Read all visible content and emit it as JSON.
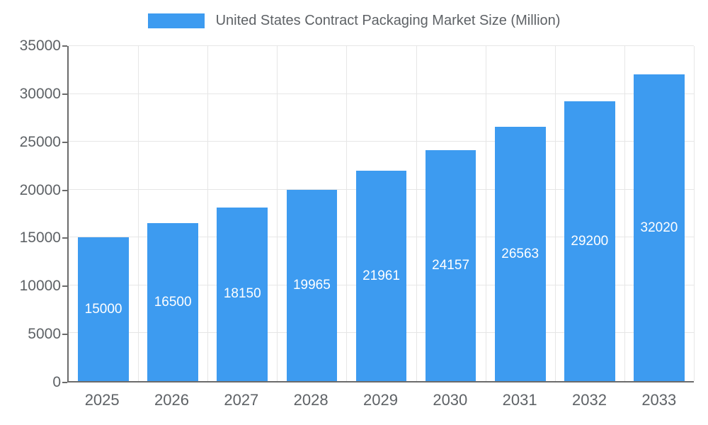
{
  "chart_data": {
    "type": "bar",
    "title": "United States Contract Packaging Market Size (Million)",
    "categories": [
      "2025",
      "2026",
      "2027",
      "2028",
      "2029",
      "2030",
      "2031",
      "2032",
      "2033"
    ],
    "values": [
      15000,
      16500,
      18150,
      19965,
      21961,
      24157,
      26563,
      29200,
      32020
    ],
    "xlabel": "",
    "ylabel": "",
    "ylim": [
      0,
      35000
    ],
    "ytick_step": 5000,
    "yticks": [
      0,
      5000,
      10000,
      15000,
      20000,
      25000,
      30000,
      35000
    ],
    "bar_color": "#3d9bf0",
    "bar_label_color": "#ffffff",
    "axis_text_color": "#5e6266",
    "axis_line_color": "#6b6b6b",
    "grid_color": "#e6e6e6",
    "grid": true,
    "legend_position": "top-center"
  }
}
